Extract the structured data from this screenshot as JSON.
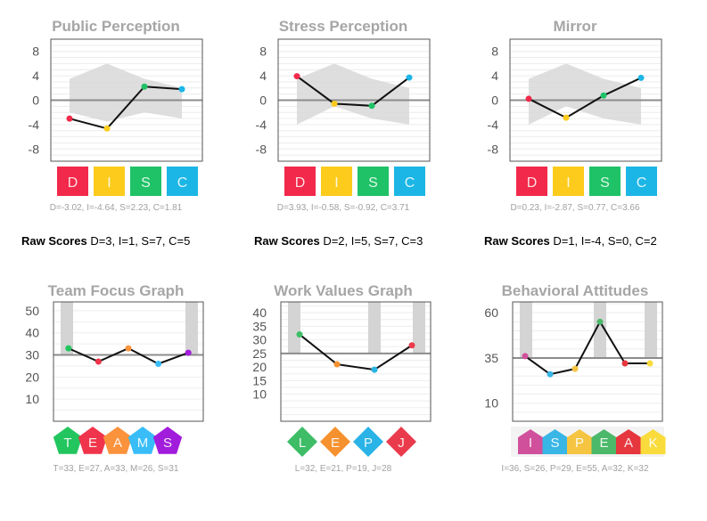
{
  "colors": {
    "D": "#f2294a",
    "I": "#fccb1c",
    "S": "#1fc266",
    "C": "#1bb6e5",
    "T": "#22c55e",
    "E": "#f0344b",
    "A": "#fb923c",
    "M": "#38bdf8",
    "Sv": "#a21cdb",
    "L": "#3ebd66",
    "E2": "#f5922f",
    "P": "#29b3e6",
    "J": "#ea3b4c",
    "I2": "#d0509c",
    "S2": "#38b6e6",
    "P2": "#f5c542",
    "E3": "#4cb86a",
    "A2": "#e6363e",
    "K": "#f9dc3c"
  },
  "raw_scores_label": "Raw Scores",
  "raw_scores": [
    "D=3, I=1, S=7, C=5",
    "D=2, I=5, S=7, C=3",
    "D=1, I=-4, S=0, C=2"
  ],
  "chart_data": [
    {
      "type": "line",
      "title": "Public Perception",
      "categories": [
        "D",
        "I",
        "S",
        "C"
      ],
      "values": [
        -3.02,
        -4.64,
        2.23,
        1.81
      ],
      "ylim": [
        -10,
        10
      ],
      "yticks": [
        8,
        4,
        0,
        -4,
        -8
      ],
      "band_top": [
        3.5,
        6,
        3.5,
        2
      ],
      "band_bottom": [
        -2,
        -3.5,
        -2,
        -3
      ],
      "summary": "D=-3.02, I=-4.64, S=2.23, C=1.81"
    },
    {
      "type": "line",
      "title": "Stress Perception",
      "categories": [
        "D",
        "I",
        "S",
        "C"
      ],
      "values": [
        3.93,
        -0.58,
        -0.92,
        3.71
      ],
      "ylim": [
        -10,
        10
      ],
      "yticks": [
        8,
        4,
        0,
        -4,
        -8
      ],
      "band_top": [
        3.5,
        6,
        3.5,
        2
      ],
      "band_bottom": [
        -4,
        -1,
        -3,
        -4
      ],
      "summary": "D=3.93, I=-0.58, S=-0.92, C=3.71"
    },
    {
      "type": "line",
      "title": "Mirror",
      "categories": [
        "D",
        "I",
        "S",
        "C"
      ],
      "values": [
        0.23,
        -2.87,
        0.77,
        3.66
      ],
      "ylim": [
        -10,
        10
      ],
      "yticks": [
        8,
        4,
        0,
        -4,
        -8
      ],
      "band_top": [
        3.5,
        6,
        3.5,
        2
      ],
      "band_bottom": [
        -4,
        -1,
        -3,
        -4
      ],
      "summary": "D=0.23, I=-2.87, S=0.77, C=3.66"
    },
    {
      "type": "line",
      "title": "Team Focus Graph",
      "categories": [
        "T",
        "E",
        "A",
        "M",
        "S"
      ],
      "values": [
        33,
        27,
        33,
        26,
        31
      ],
      "ylim": [
        0,
        54
      ],
      "yticks": [
        50,
        40,
        30,
        20,
        10
      ],
      "baseline": 30,
      "shaded": [
        0,
        4
      ],
      "summary": "T=33, E=27, A=33, M=26, S=31"
    },
    {
      "type": "line",
      "title": "Work Values Graph",
      "categories": [
        "L",
        "E",
        "P",
        "J"
      ],
      "values": [
        32,
        21,
        19,
        28
      ],
      "ylim": [
        0,
        44
      ],
      "yticks": [
        40,
        35,
        30,
        25,
        20,
        15,
        10
      ],
      "baseline": 25,
      "shaded": [
        0,
        2,
        3
      ],
      "summary": "L=32, E=21, P=19, J=28"
    },
    {
      "type": "line",
      "title": "Behavioral Attitudes",
      "categories": [
        "I",
        "S",
        "P",
        "E",
        "A",
        "K"
      ],
      "values": [
        36,
        26,
        29,
        55,
        32,
        32
      ],
      "ylim": [
        0,
        66
      ],
      "yticks": [
        60,
        35,
        10
      ],
      "baseline": 35,
      "shaded": [
        0,
        3,
        5
      ],
      "summary": "I=36, S=26, P=29, E=55, A=32, K=32"
    }
  ]
}
